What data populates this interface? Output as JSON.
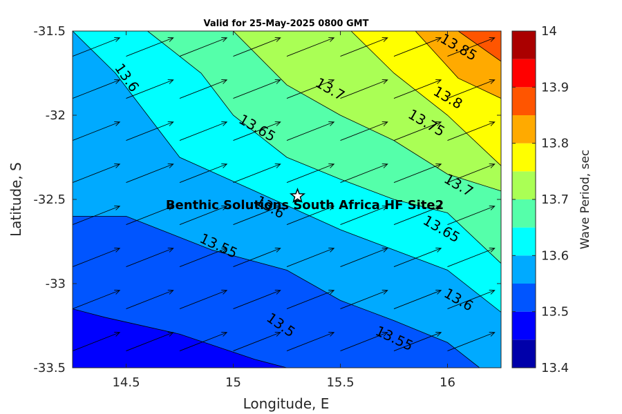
{
  "chart_data": {
    "type": "contour",
    "title": "Valid for 25-May-2025 0800 GMT",
    "xlabel": "Longitude, E",
    "ylabel": "Latitude, S",
    "xlim": [
      14.25,
      16.25
    ],
    "ylim": [
      -33.5,
      -31.5
    ],
    "x_ticks": [
      "14.5",
      "15",
      "15.5",
      "16"
    ],
    "y_ticks": [
      "-31.5",
      "-32",
      "-32.5",
      "-33",
      "-33.5"
    ],
    "colorbar": {
      "label": "Wave Period, sec",
      "ticks": [
        "13.4",
        "13.5",
        "13.6",
        "13.7",
        "13.8",
        "13.9",
        "14"
      ],
      "range": [
        13.4,
        14.0
      ],
      "levels": [
        13.4,
        13.45,
        13.5,
        13.55,
        13.6,
        13.65,
        13.7,
        13.75,
        13.8,
        13.85,
        13.9,
        13.95,
        14.0
      ],
      "colors": [
        "#0000aa",
        "#0000ff",
        "#0055ff",
        "#00aaff",
        "#00ffff",
        "#55ffaa",
        "#aaff55",
        "#ffff00",
        "#ffaa00",
        "#ff5500",
        "#ff0000",
        "#aa0000"
      ]
    },
    "contour_lines": [
      {
        "level": 13.5,
        "label": "13.5",
        "points": [
          [
            14.25,
            -33.15
          ],
          [
            14.4,
            -33.2
          ],
          [
            14.75,
            -33.3
          ],
          [
            15.1,
            -33.45
          ],
          [
            15.25,
            -33.5
          ]
        ]
      },
      {
        "level": 13.55,
        "label": "13.55",
        "points": [
          [
            14.25,
            -32.6
          ],
          [
            14.5,
            -32.6
          ],
          [
            14.9,
            -32.8
          ],
          [
            15.25,
            -32.92
          ],
          [
            15.5,
            -33.1
          ],
          [
            15.75,
            -33.22
          ],
          [
            16.0,
            -33.35
          ],
          [
            16.15,
            -33.5
          ]
        ]
      },
      {
        "level": 13.6,
        "label": "13.6",
        "points": [
          [
            14.25,
            -31.5
          ],
          [
            14.45,
            -31.75
          ],
          [
            14.75,
            -32.25
          ],
          [
            15.1,
            -32.45
          ],
          [
            15.5,
            -32.68
          ],
          [
            15.75,
            -32.8
          ],
          [
            16.0,
            -32.92
          ],
          [
            16.25,
            -33.17
          ]
        ]
      },
      {
        "level": 13.65,
        "label": "13.65",
        "points": [
          [
            14.6,
            -31.5
          ],
          [
            14.85,
            -31.75
          ],
          [
            15.0,
            -32.0
          ],
          [
            15.25,
            -32.25
          ],
          [
            15.5,
            -32.38
          ],
          [
            15.75,
            -32.5
          ],
          [
            16.0,
            -32.58
          ],
          [
            16.25,
            -32.88
          ]
        ]
      },
      {
        "level": 13.7,
        "label": "13.7",
        "points": [
          [
            15.0,
            -31.5
          ],
          [
            15.25,
            -31.82
          ],
          [
            15.5,
            -32.0
          ],
          [
            15.75,
            -32.15
          ],
          [
            16.0,
            -32.35
          ],
          [
            16.25,
            -32.45
          ]
        ]
      },
      {
        "level": 13.75,
        "label": "13.75",
        "points": [
          [
            15.55,
            -31.5
          ],
          [
            15.75,
            -31.75
          ],
          [
            16.0,
            -32.0
          ],
          [
            16.25,
            -32.3
          ]
        ]
      },
      {
        "level": 13.8,
        "label": "13.8",
        "points": [
          [
            15.85,
            -31.5
          ],
          [
            16.05,
            -31.78
          ],
          [
            16.25,
            -31.9
          ]
        ]
      },
      {
        "level": 13.85,
        "label": "13.85",
        "points": [
          [
            16.05,
            -31.5
          ],
          [
            16.25,
            -31.68
          ]
        ]
      }
    ],
    "site": {
      "name": "Benthic Solutions South Africa HF Site2",
      "lon": 15.3,
      "lat": -32.48
    },
    "vectors": {
      "lons": [
        14.25,
        14.5,
        14.75,
        15.0,
        15.25,
        15.5,
        15.75,
        16.0,
        16.25
      ],
      "lats": [
        -31.65,
        -31.9,
        -32.15,
        -32.4,
        -32.65,
        -32.9,
        -33.15,
        -33.4
      ],
      "dx": 0.22,
      "dy": 0.11
    }
  }
}
